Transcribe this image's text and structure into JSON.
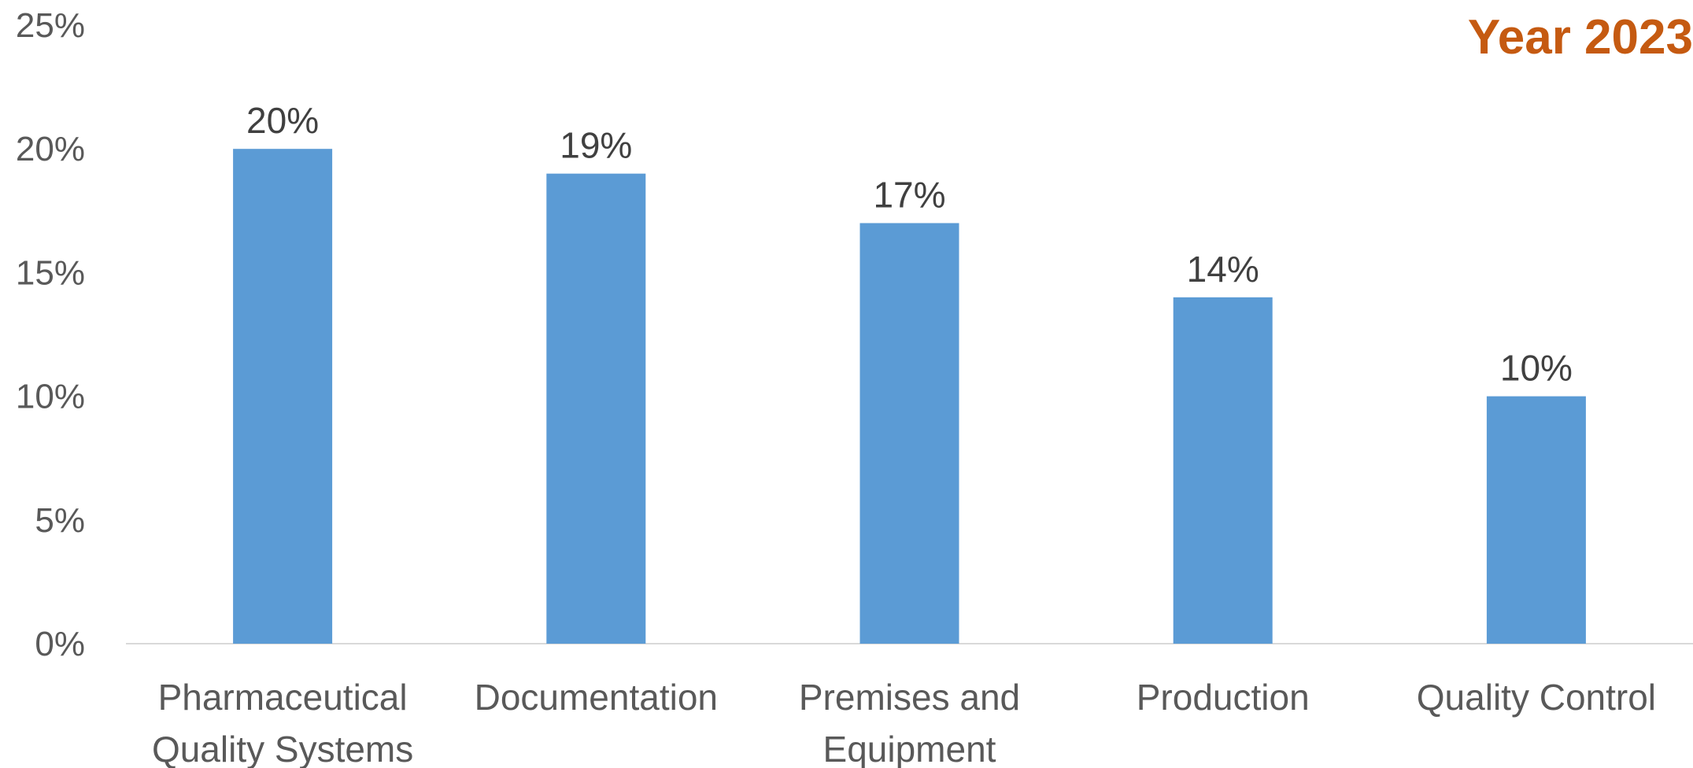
{
  "chart_data": {
    "type": "bar",
    "title": "Year 2023",
    "categories": [
      [
        "Pharmaceutical",
        "Quality Systems"
      ],
      [
        "Documentation"
      ],
      [
        "Premises and",
        "Equipment"
      ],
      [
        "Production"
      ],
      [
        "Quality Control"
      ]
    ],
    "values": [
      20,
      19,
      17,
      14,
      10
    ],
    "data_labels": [
      "20%",
      "19%",
      "17%",
      "14%",
      "10%"
    ],
    "y_ticks": [
      0,
      5,
      10,
      15,
      20,
      25
    ],
    "y_tick_labels": [
      "0%",
      "5%",
      "10%",
      "15%",
      "20%",
      "25%"
    ],
    "ylim": [
      0,
      25
    ],
    "grid": false,
    "legend": "none",
    "colors": {
      "bar": "#5B9BD5",
      "title": "#C55A11",
      "axis_line": "#D9D9D9"
    }
  }
}
